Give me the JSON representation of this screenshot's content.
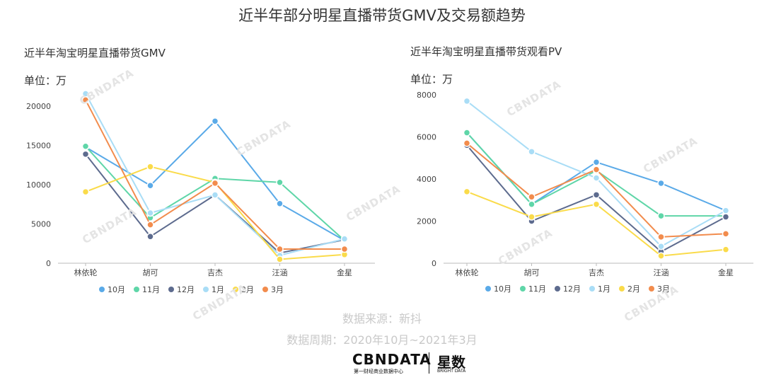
{
  "title": "近半年部分明星直播带货GMV及交易额趋势",
  "left": {
    "subtitle": "近半年淘宝明星直播带货GMV",
    "unit": "单位：万"
  },
  "right": {
    "subtitle": "近半年淘宝明星直播带货观看PV",
    "unit": "单位：万"
  },
  "source": "数据来源：新抖",
  "period": "数据周期：2020年10月~2021年3月",
  "logo": {
    "cbn": "CBNDATA",
    "cbn_sub": "第一财经商业数据中心",
    "xs": "星数",
    "xs_sub": "BRIGHT DATA"
  },
  "watermark": "CBNDATA",
  "chart_data": [
    {
      "type": "line",
      "categories": [
        "林依轮",
        "胡可",
        "吉杰",
        "汪涵",
        "金星"
      ],
      "ylim": [
        0,
        22000
      ],
      "yticks": [
        0,
        5000,
        10000,
        15000,
        20000
      ],
      "series": [
        {
          "name": "10月",
          "color": "#5aaae8",
          "values": [
            14800,
            9900,
            18100,
            7600,
            2900
          ]
        },
        {
          "name": "11月",
          "color": "#5fd6a8",
          "values": [
            14900,
            5800,
            10800,
            10300,
            2900
          ]
        },
        {
          "name": "12月",
          "color": "#5d6b8e",
          "values": [
            13900,
            3400,
            8700,
            1300,
            3000
          ]
        },
        {
          "name": "1月",
          "color": "#a9ddf6",
          "values": [
            21600,
            6400,
            8700,
            1000,
            3100
          ]
        },
        {
          "name": "2月",
          "color": "#fadb4a",
          "values": [
            9100,
            12300,
            10300,
            500,
            1100
          ]
        },
        {
          "name": "3月",
          "color": "#f28c4d",
          "values": [
            20800,
            4900,
            10200,
            1800,
            1800
          ]
        }
      ],
      "legend": "bottom",
      "grid": false
    },
    {
      "type": "line",
      "categories": [
        "林依轮",
        "胡可",
        "吉杰",
        "汪涵",
        "金星"
      ],
      "ylim": [
        0,
        8000
      ],
      "yticks": [
        0,
        2000,
        4000,
        6000,
        8000
      ],
      "series": [
        {
          "name": "10月",
          "color": "#5aaae8",
          "values": [
            6200,
            2800,
            4800,
            3800,
            2500
          ]
        },
        {
          "name": "11月",
          "color": "#5fd6a8",
          "values": [
            6200,
            2800,
            4400,
            2250,
            2250
          ]
        },
        {
          "name": "12月",
          "color": "#5d6b8e",
          "values": [
            5600,
            2000,
            3250,
            550,
            2200
          ]
        },
        {
          "name": "1月",
          "color": "#a9ddf6",
          "values": [
            7700,
            5300,
            4050,
            800,
            2500
          ]
        },
        {
          "name": "2月",
          "color": "#fadb4a",
          "values": [
            3400,
            2200,
            2800,
            350,
            650
          ]
        },
        {
          "name": "3月",
          "color": "#f28c4d",
          "values": [
            5700,
            3150,
            4450,
            1250,
            1400
          ]
        }
      ],
      "legend": "bottom",
      "grid": false
    }
  ]
}
